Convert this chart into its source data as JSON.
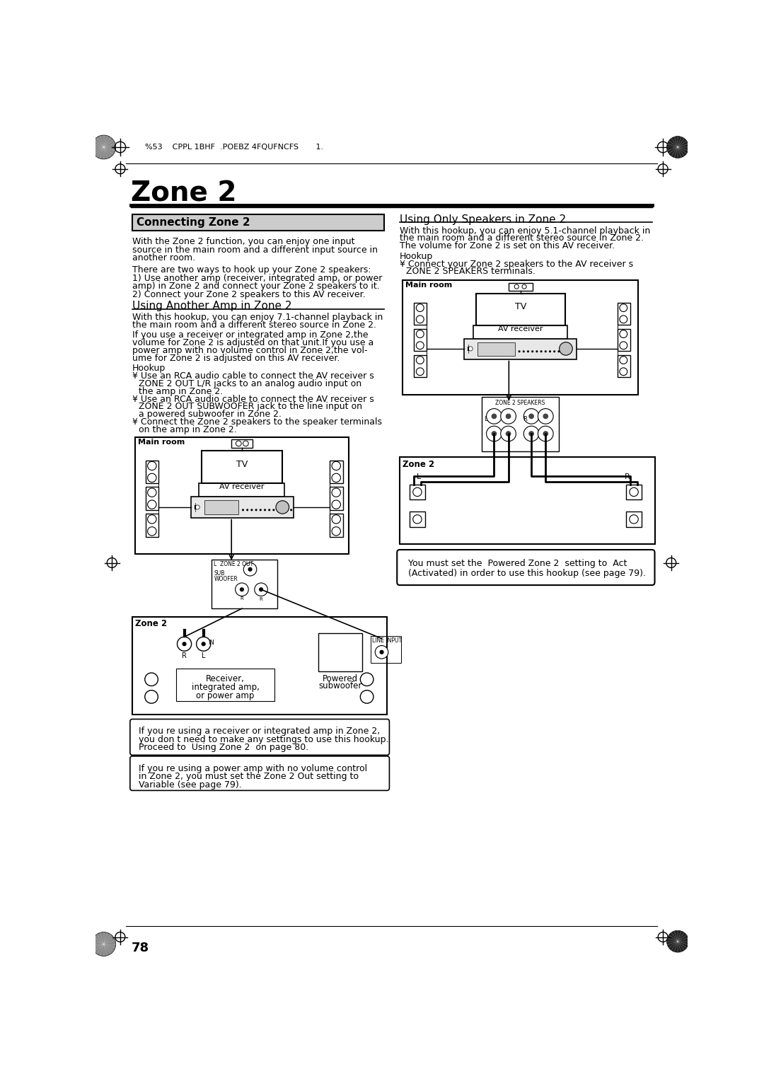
{
  "title": "Zone 2",
  "header_text": "%53    CPPL 1BHF  .POEBZ 4FQUFNCFS       1.",
  "page_number": "78",
  "bg_color": "#ffffff",
  "section1_title": "Connecting Zone 2",
  "section1_title_bg": "#cccccc",
  "section2_title": "Using Another Amp in Zone 2",
  "section3_title": "Using Only Speakers in Zone 2",
  "connecting_text": [
    "With the Zone 2 function, you can enjoy one input",
    "source in the main room and a different input source in",
    "another room.",
    "",
    "There are two ways to hook up your Zone 2 speakers:",
    "1) Use another amp (receiver, integrated amp, or power",
    "amp) in Zone 2 and connect your Zone 2 speakers to it.",
    "2) Connect your Zone 2 speakers to this AV receiver."
  ],
  "using_amp_text": [
    "With this hookup, you can enjoy 7.1-channel playback in",
    "the main room and a different stereo source in Zone 2.",
    "",
    "If you use a receiver or integrated amp in Zone 2,the",
    "volume for Zone 2 is adjusted on that unit.If you use a",
    "power amp with no volume control in Zone 2,the vol-",
    "ume for Zone 2 is adjusted on this AV receiver.",
    "",
    "Hookup",
    "¥ Use an RCA audio cable to connect the AV receiver s",
    "   ZONE 2 OUT L/R jacks to an analog audio input on",
    "   the amp in Zone 2.",
    "¥ Use an RCA audio cable to connect the AV receiver s",
    "   ZONE 2 OUT SUBWOOFER jack to the line input on",
    "   a powered subwoofer in Zone 2.",
    "¥ Connect the Zone 2 speakers to the speaker terminals",
    "   on the amp in Zone 2."
  ],
  "only_speakers_text": [
    "With this hookup, you can enjoy 5.1-channel playback in",
    "the main room and a different stereo source in Zone 2.",
    "The volume for Zone 2 is set on this AV receiver.",
    "",
    "Hookup",
    "¥ Connect your Zone 2 speakers to the AV receiver s",
    "   ZONE 2 SPEAKERS terminals."
  ],
  "note1_text": [
    "If you re using a receiver or integrated amp in Zone 2,",
    "you don t need to make any settings to use this hookup.",
    "Proceed to  Using Zone 2  on page 80."
  ],
  "note2_text": [
    "If you re using a power amp with no volume control",
    "in Zone 2, you must set the Zone 2 Out setting to",
    "Variable (see page 79)."
  ],
  "powered_zone_note": [
    "You must set the  Powered Zone 2  setting to  Act",
    "(Activated) in order to use this hookup (see page 79)."
  ]
}
